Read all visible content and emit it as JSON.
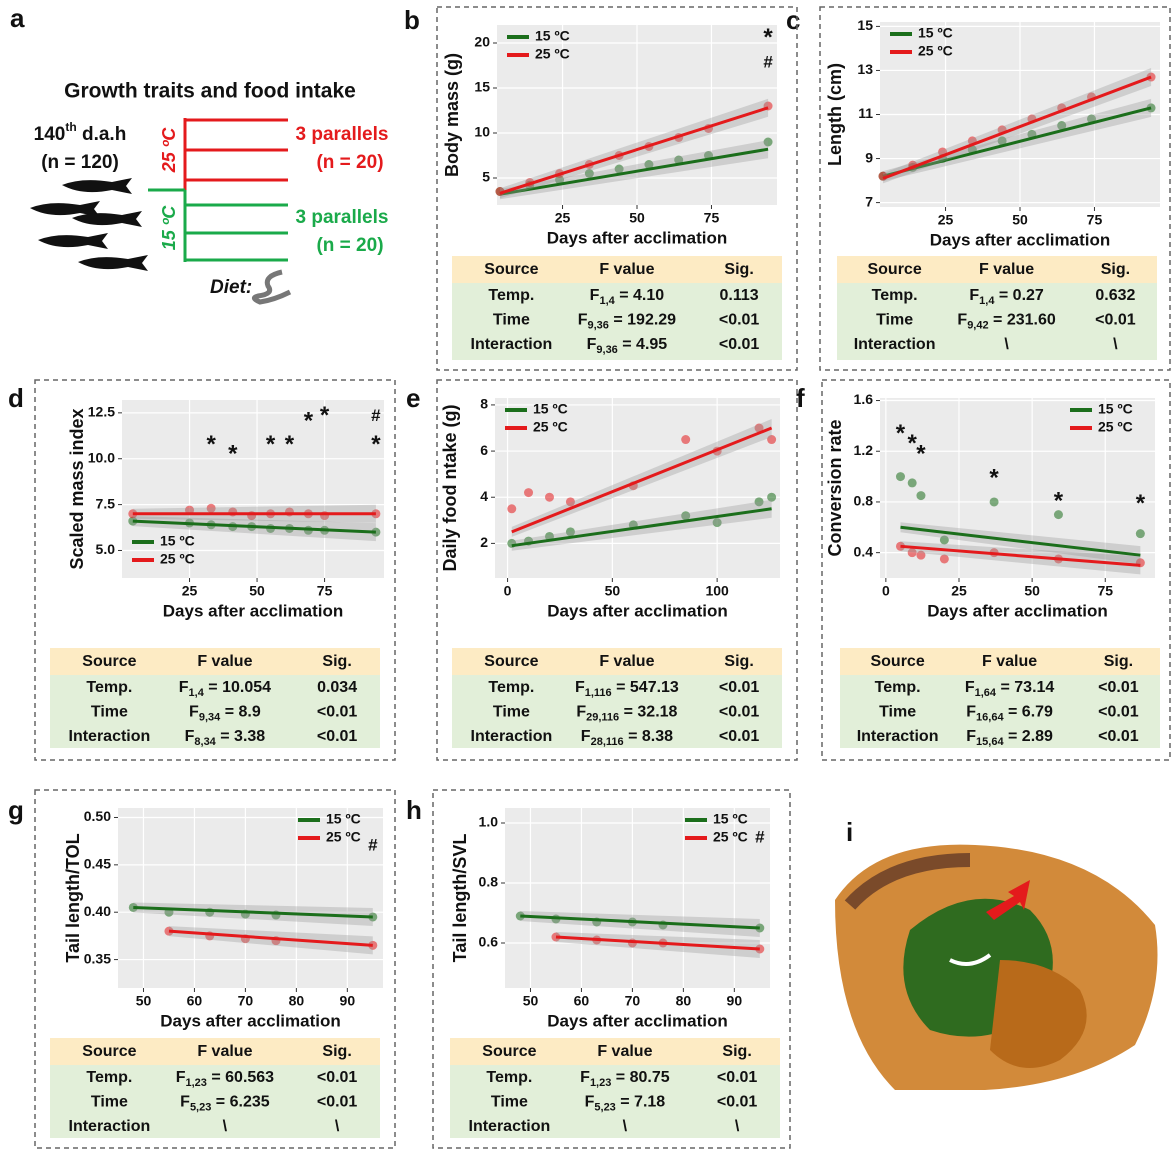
{
  "panel_labels": [
    "a",
    "b",
    "c",
    "d",
    "e",
    "f",
    "g",
    "h",
    "i"
  ],
  "panel_a": {
    "title": "Growth traits and food intake",
    "age": "140",
    "age_sup": "th",
    "age_unit": " d.a.h",
    "n_total": "(n = 120)",
    "warm": "25 ºC",
    "cold": "15 ºC",
    "warm_parallels": "3 parallels",
    "warm_n": "(n = 20)",
    "cold_parallels": "3 parallels",
    "cold_n": "(n = 20)",
    "diet": "Diet:"
  },
  "chart_data": [
    {
      "type": "scatter",
      "ylabel": "Body mass (g)",
      "xlabel": "Days after acclimation",
      "xlim": [
        3,
        97
      ],
      "xticks": [
        25,
        50,
        75
      ],
      "ylim": [
        2,
        22
      ],
      "yticks": [
        5,
        10,
        15,
        20
      ],
      "legend": "top-left",
      "series": [
        {
          "name": "15 ºC",
          "color": "#1b6e1b",
          "x": [
            4,
            14,
            24,
            34,
            44,
            54,
            64,
            74,
            94
          ],
          "values": [
            3.5,
            4.2,
            4.8,
            5.5,
            6,
            6.5,
            7,
            7.5,
            9
          ],
          "fit": [
            3.2,
            8.2
          ]
        },
        {
          "name": "25 ºC",
          "color": "#e41a1c",
          "x": [
            4,
            14,
            24,
            34,
            44,
            54,
            64,
            74,
            94
          ],
          "values": [
            3.5,
            4.5,
            5.5,
            6.5,
            7.5,
            8.5,
            9.5,
            10.5,
            13
          ],
          "fit": [
            3.3,
            12.8
          ]
        }
      ],
      "annotations": [
        {
          "text": "*",
          "x": 94,
          "y": 20.5
        },
        {
          "text": "#",
          "x": 94,
          "y": 17.8
        }
      ]
    },
    {
      "type": "scatter",
      "ylabel": "Length (cm)",
      "xlabel": "Days after acclimation",
      "xlim": [
        3,
        97
      ],
      "xticks": [
        25,
        50,
        75
      ],
      "ylim": [
        6.8,
        15.2
      ],
      "yticks": [
        7,
        9,
        11,
        13,
        15
      ],
      "legend": "top-left",
      "series": [
        {
          "name": "15 ºC",
          "color": "#1b6e1b",
          "x": [
            4,
            14,
            24,
            34,
            44,
            54,
            64,
            74,
            94
          ],
          "values": [
            8.2,
            8.6,
            9,
            9.4,
            9.8,
            10.1,
            10.5,
            10.8,
            11.3
          ],
          "fit": [
            8.2,
            11.3
          ]
        },
        {
          "name": "25 ºC",
          "color": "#e41a1c",
          "x": [
            4,
            14,
            24,
            34,
            44,
            54,
            64,
            74,
            94
          ],
          "values": [
            8.2,
            8.7,
            9.3,
            9.8,
            10.3,
            10.8,
            11.3,
            11.8,
            12.7
          ],
          "fit": [
            8.1,
            12.7
          ]
        }
      ],
      "annotations": []
    },
    {
      "type": "scatter",
      "ylabel": "Scaled mass index",
      "xlabel": "Days after acclimation",
      "xlim": [
        0,
        97
      ],
      "xticks": [
        25,
        50,
        75
      ],
      "ylim": [
        3.5,
        13.2
      ],
      "yticks": [
        {
          "value": 5,
          "label": "5.0"
        },
        {
          "value": 7.5,
          "label": "7.5"
        },
        {
          "value": 10,
          "label": "10.0"
        },
        {
          "value": 12.5,
          "label": "12.5"
        }
      ],
      "legend": "bottom-left",
      "series": [
        {
          "name": "15 ºC",
          "color": "#1b6e1b",
          "x": [
            4,
            25,
            33,
            41,
            48,
            55,
            62,
            69,
            75,
            94
          ],
          "values": [
            6.6,
            6.5,
            6.4,
            6.3,
            6.3,
            6.2,
            6.2,
            6.1,
            6.1,
            6.0
          ],
          "fit": [
            6.6,
            6.0
          ]
        },
        {
          "name": "25 ºC",
          "color": "#e41a1c",
          "x": [
            4,
            25,
            33,
            41,
            48,
            55,
            62,
            69,
            75,
            94
          ],
          "values": [
            7.0,
            7.2,
            7.3,
            7.1,
            6.9,
            7.0,
            7.1,
            7.0,
            6.9,
            7.0
          ],
          "fit": [
            7.0,
            7.0
          ]
        }
      ],
      "annotations": [
        {
          "text": "*",
          "x": 33,
          "y": 10.7
        },
        {
          "text": "*",
          "x": 41,
          "y": 10.2
        },
        {
          "text": "*",
          "x": 55,
          "y": 10.7
        },
        {
          "text": "*",
          "x": 62,
          "y": 10.7
        },
        {
          "text": "*",
          "x": 69,
          "y": 12.0
        },
        {
          "text": "*",
          "x": 75,
          "y": 12.3
        },
        {
          "text": "#",
          "x": 94,
          "y": 12.3
        },
        {
          "text": "*",
          "x": 94,
          "y": 10.7
        }
      ]
    },
    {
      "type": "scatter",
      "ylabel": "Daily food ntake (g)",
      "xlabel": "Days after acclimation",
      "xlim": [
        -6,
        130
      ],
      "xticks": [
        0,
        50,
        100
      ],
      "ylim": [
        0.5,
        8.3
      ],
      "yticks": [
        2,
        4,
        6,
        8
      ],
      "legend": "top-left",
      "series": [
        {
          "name": "15 ºC",
          "color": "#1b6e1b",
          "x": [
            2,
            10,
            20,
            30,
            60,
            85,
            100,
            120,
            126
          ],
          "values": [
            2.0,
            2.1,
            2.3,
            2.5,
            2.8,
            3.2,
            2.9,
            3.8,
            4.0
          ],
          "fit": [
            1.9,
            3.5
          ]
        },
        {
          "name": "25 ºC",
          "color": "#e41a1c",
          "x": [
            2,
            10,
            20,
            30,
            60,
            85,
            100,
            120,
            126
          ],
          "values": [
            3.5,
            4.2,
            4.0,
            3.8,
            4.5,
            6.5,
            6.0,
            7.0,
            6.5
          ],
          "fit": [
            2.5,
            7.0
          ]
        }
      ],
      "annotations": []
    },
    {
      "type": "scatter",
      "ylabel": "Conversion rate",
      "xlabel": "Days after acclimation",
      "xlim": [
        -2,
        92
      ],
      "xticks": [
        0,
        25,
        50,
        75
      ],
      "ylim": [
        0.2,
        1.62
      ],
      "yticks": [
        0.4,
        0.8,
        1.2,
        1.6
      ],
      "legend": "top-right",
      "series": [
        {
          "name": "15 ºC",
          "color": "#1b6e1b",
          "x": [
            5,
            9,
            12,
            20,
            37,
            59,
            87
          ],
          "values": [
            1.0,
            0.95,
            0.85,
            0.5,
            0.8,
            0.7,
            0.55
          ],
          "fit": [
            0.6,
            0.38
          ]
        },
        {
          "name": "25 ºC",
          "color": "#e41a1c",
          "x": [
            5,
            9,
            12,
            20,
            37,
            59,
            87
          ],
          "values": [
            0.45,
            0.4,
            0.38,
            0.35,
            0.4,
            0.35,
            0.32
          ],
          "fit": [
            0.45,
            0.3
          ]
        }
      ],
      "annotations": [
        {
          "text": "*",
          "x": 5,
          "y": 1.33
        },
        {
          "text": "*",
          "x": 9,
          "y": 1.25
        },
        {
          "text": "*",
          "x": 12,
          "y": 1.17
        },
        {
          "text": "*",
          "x": 37,
          "y": 0.98
        },
        {
          "text": "*",
          "x": 59,
          "y": 0.8
        },
        {
          "text": "*",
          "x": 87,
          "y": 0.78
        }
      ]
    },
    {
      "type": "scatter",
      "ylabel": "Tail length/TOL",
      "xlabel": "Days after acclimation",
      "xlim": [
        45,
        97
      ],
      "xticks": [
        50,
        60,
        70,
        80,
        90
      ],
      "ylim": [
        0.32,
        0.51
      ],
      "yticks": [
        0.35,
        {
          "value": 0.4,
          "label": "0.40"
        },
        0.45,
        {
          "value": 0.5,
          "label": "0.50"
        }
      ],
      "legend": "top-right",
      "series": [
        {
          "name": "15 ºC",
          "color": "#1b6e1b",
          "x": [
            48,
            55,
            63,
            70,
            76,
            95
          ],
          "values": [
            0.405,
            0.4,
            0.4,
            0.398,
            0.397,
            0.395
          ],
          "fit": [
            0.405,
            0.395
          ]
        },
        {
          "name": "25 ºC",
          "color": "#e41a1c",
          "x": [
            55,
            63,
            70,
            76,
            95
          ],
          "values": [
            0.38,
            0.375,
            0.372,
            0.37,
            0.365
          ],
          "fit": [
            0.38,
            0.365
          ]
        }
      ],
      "annotations": [
        {
          "text": "#",
          "x": 95,
          "y": 0.47
        }
      ]
    },
    {
      "type": "scatter",
      "ylabel": "Tail length/SVL",
      "xlabel": "Days after acclimation",
      "xlim": [
        45,
        97
      ],
      "xticks": [
        50,
        60,
        70,
        80,
        90
      ],
      "ylim": [
        0.45,
        1.05
      ],
      "yticks": [
        {
          "value": 0.6,
          "label": "0.6"
        },
        0.8,
        {
          "value": 1,
          "label": "1.0"
        }
      ],
      "legend": "top-right",
      "series": [
        {
          "name": "15 ºC",
          "color": "#1b6e1b",
          "x": [
            48,
            55,
            63,
            70,
            76,
            95
          ],
          "values": [
            0.69,
            0.68,
            0.67,
            0.67,
            0.66,
            0.65
          ],
          "fit": [
            0.69,
            0.65
          ]
        },
        {
          "name": "25 ºC",
          "color": "#e41a1c",
          "x": [
            55,
            63,
            70,
            76,
            95
          ],
          "values": [
            0.62,
            0.61,
            0.6,
            0.6,
            0.58
          ],
          "fit": [
            0.62,
            0.58
          ]
        }
      ],
      "annotations": [
        {
          "text": "#",
          "x": 95,
          "y": 0.95
        }
      ]
    }
  ],
  "tables": [
    {
      "header": [
        "Source",
        "F value",
        "Sig."
      ],
      "rows": [
        [
          "Temp.",
          {
            "symbol": "F",
            "df": "1,4",
            "value": " = 4.10"
          },
          "0.113"
        ],
        [
          "Time",
          {
            "symbol": "F",
            "df": "9,36",
            "value": " = 192.29"
          },
          "<0.01"
        ],
        [
          "Interaction",
          {
            "symbol": "F",
            "df": "9,36",
            "value": " = 4.95"
          },
          "<0.01"
        ]
      ]
    },
    {
      "header": [
        "Source",
        "F value",
        "Sig."
      ],
      "rows": [
        [
          "Temp.",
          {
            "symbol": "F",
            "df": "1,4",
            "value": " = 0.27"
          },
          "0.632"
        ],
        [
          "Time",
          {
            "symbol": "F",
            "df": "9,42",
            "value": " = 231.60"
          },
          "<0.01"
        ],
        [
          "Interaction",
          "\\",
          "\\"
        ]
      ]
    },
    {
      "header": [
        "Source",
        "F value",
        "Sig."
      ],
      "rows": [
        [
          "Temp.",
          {
            "symbol": "F",
            "df": "1,4",
            "value": " = 10.054"
          },
          "0.034"
        ],
        [
          "Time",
          {
            "symbol": "F",
            "df": "9,34",
            "value": " = 8.9"
          },
          "<0.01"
        ],
        [
          "Interaction",
          {
            "symbol": "F",
            "df": "8,34",
            "value": " = 3.38"
          },
          "<0.01"
        ]
      ]
    },
    {
      "header": [
        "Source",
        "F value",
        "Sig."
      ],
      "rows": [
        [
          "Temp.",
          {
            "symbol": "F",
            "df": "1,116",
            "value": " = 547.13"
          },
          "<0.01"
        ],
        [
          "Time",
          {
            "symbol": "F",
            "df": "29,116",
            "value": " = 32.18"
          },
          "<0.01"
        ],
        [
          "Interaction",
          {
            "symbol": "F",
            "df": "28,116",
            "value": " = 8.38"
          },
          "<0.01"
        ]
      ]
    },
    {
      "header": [
        "Source",
        "F value",
        "Sig."
      ],
      "rows": [
        [
          "Temp.",
          {
            "symbol": "F",
            "df": "1,64",
            "value": " = 73.14"
          },
          "<0.01"
        ],
        [
          "Time",
          {
            "symbol": "F",
            "df": "16,64",
            "value": " = 6.79"
          },
          "<0.01"
        ],
        [
          "Interaction",
          {
            "symbol": "F",
            "df": "15,64",
            "value": " = 2.89"
          },
          "<0.01"
        ]
      ]
    },
    {
      "header": [
        "Source",
        "F value",
        "Sig."
      ],
      "rows": [
        [
          "Temp.",
          {
            "symbol": "F",
            "df": "1,23",
            "value": " = 60.563"
          },
          "<0.01"
        ],
        [
          "Time",
          {
            "symbol": "F",
            "df": "5,23",
            "value": " = 6.235"
          },
          "<0.01"
        ],
        [
          "Interaction",
          "\\",
          "\\"
        ]
      ]
    },
    {
      "header": [
        "Source",
        "F value",
        "Sig."
      ],
      "rows": [
        [
          "Temp.",
          {
            "symbol": "F",
            "df": "1,23",
            "value": " = 80.75"
          },
          "<0.01"
        ],
        [
          "Time",
          {
            "symbol": "F",
            "df": "5,23",
            "value": " = 7.18"
          },
          "<0.01"
        ],
        [
          "Interaction",
          "\\",
          "\\"
        ]
      ]
    }
  ]
}
